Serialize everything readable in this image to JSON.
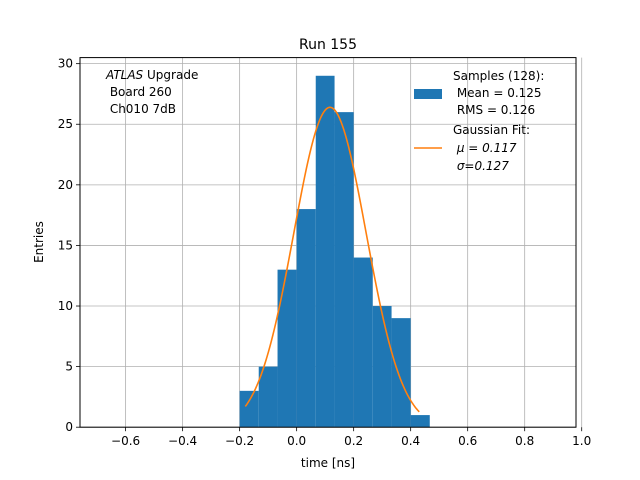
{
  "chart_data": {
    "type": "bar",
    "title": "Run 155",
    "xlabel": "time [ns]",
    "ylabel": "Entries",
    "xlim": [
      -0.76,
      0.98
    ],
    "ylim": [
      0,
      30.5
    ],
    "grid": true,
    "x_ticks": [
      "−0.6",
      "−0.4",
      "−0.2",
      "0.0",
      "0.2",
      "0.4",
      "0.6",
      "0.8",
      "1.0"
    ],
    "x_tick_values": [
      -0.6,
      -0.4,
      -0.2,
      0.0,
      0.2,
      0.4,
      0.6,
      0.8,
      1.0
    ],
    "y_ticks": [
      "0",
      "5",
      "10",
      "15",
      "20",
      "25",
      "30"
    ],
    "y_tick_values": [
      0,
      5,
      10,
      15,
      20,
      25,
      30
    ],
    "histogram": {
      "bin_edges": [
        -0.2,
        -0.133,
        -0.067,
        0.0,
        0.067,
        0.133,
        0.2,
        0.267,
        0.333,
        0.4,
        0.467
      ],
      "counts": [
        3,
        5,
        13,
        18,
        29,
        26,
        14,
        10,
        9,
        1
      ],
      "color": "#1f77b4"
    },
    "fit": {
      "type": "gaussian",
      "amplitude": 26.4,
      "mu": 0.117,
      "sigma": 0.127,
      "x_range": [
        -0.18,
        0.43
      ],
      "color": "#ff7f0e"
    },
    "annotation_lines": [
      "ATLAS Upgrade",
      " Board 260",
      " Ch010 7dB"
    ],
    "annotation_italic": "ATLAS",
    "legend_position": "upper right",
    "legend": {
      "samples": [
        "Samples (128):",
        " Mean = 0.125",
        " RMS = 0.126"
      ],
      "fit_title": "Gaussian Fit:",
      "fit_mu": " μ = 0.117",
      "fit_sigma": " σ=0.127"
    }
  }
}
